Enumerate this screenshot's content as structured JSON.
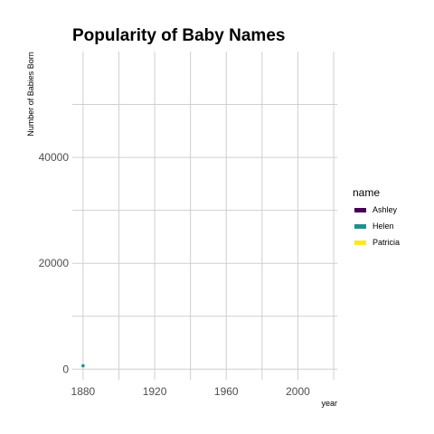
{
  "chart_data": {
    "type": "line",
    "title": "Popularity of Baby Names",
    "xlabel": "year",
    "ylabel": "Number of Babies Born",
    "xlim": [
      1874,
      2022
    ],
    "ylim": [
      -2000,
      60000
    ],
    "x_ticks": [
      1880,
      1920,
      1960,
      2000
    ],
    "x_tick_labels": [
      "1880",
      "1920",
      "1960",
      "2000"
    ],
    "x_minor_ticks": [
      1900,
      1940,
      1980,
      2020
    ],
    "y_ticks": [
      0,
      20000,
      40000
    ],
    "y_tick_labels": [
      "0",
      "20000",
      "40000"
    ],
    "y_minor_ticks": [
      10000,
      30000,
      50000
    ],
    "grid": true,
    "legend": {
      "title": "name",
      "position": "right"
    },
    "series": [
      {
        "name": "Ashley",
        "color": "#440154",
        "x": [],
        "y": []
      },
      {
        "name": "Helen",
        "color": "#21908C",
        "x": [
          1880
        ],
        "y": [
          636
        ]
      },
      {
        "name": "Patricia",
        "color": "#FDE725",
        "x": [],
        "y": []
      }
    ]
  }
}
